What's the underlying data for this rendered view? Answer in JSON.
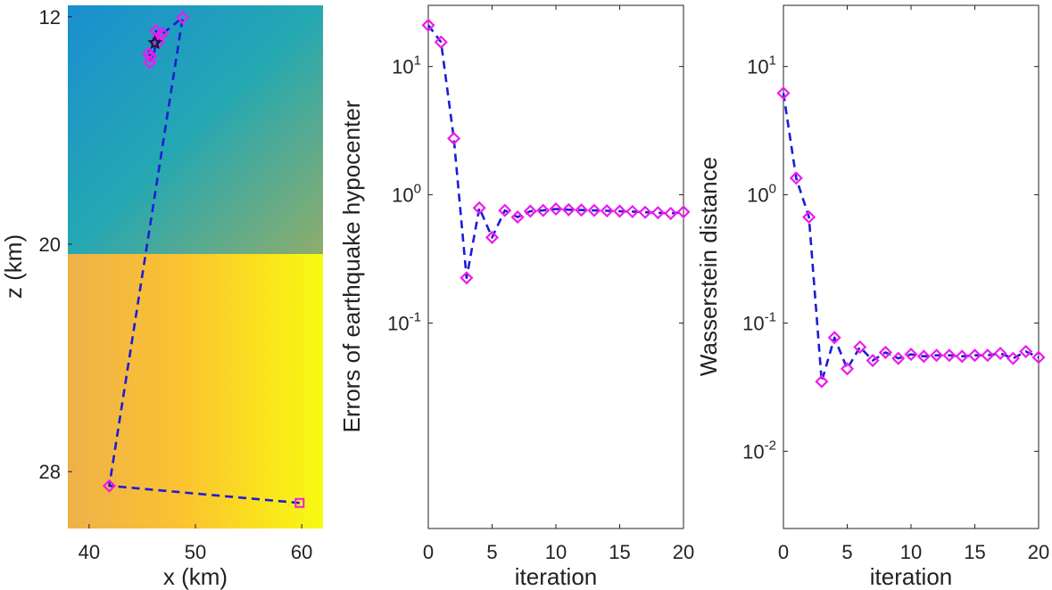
{
  "chart_data": [
    {
      "type": "line",
      "panel": "left",
      "xlabel": "x (km)",
      "ylabel": "z (km)",
      "xlim": [
        38,
        62
      ],
      "ylim": [
        30,
        11.6
      ],
      "x_ticks": [
        {
          "value": 40,
          "label": "40"
        },
        {
          "value": 50,
          "label": "50"
        },
        {
          "value": 60,
          "label": "60"
        }
      ],
      "y_ticks": [
        {
          "value": 12,
          "label": "12"
        },
        {
          "value": 20,
          "label": "20"
        },
        {
          "value": 28,
          "label": "28"
        }
      ],
      "layer_boundary_depth": 20,
      "background_colors": {
        "upper_left": "#1a8ed0",
        "upper_right": "#8fad6c",
        "lower_left": "#eeb14a",
        "lower_mid": "#fbc330",
        "lower_right": "#f8fa10"
      },
      "series": [
        {
          "name": "hypocenter path",
          "line_color": "#1c1cd8",
          "marker_color": "#ee1aee",
          "x": [
            59.8,
            41.9,
            48.8,
            46.9,
            46.5,
            45.7,
            46.6,
            46.3,
            45.6,
            45.8
          ],
          "y": [
            29.1,
            28.5,
            12.03,
            12.6,
            12.9,
            13.6,
            12.7,
            12.5,
            13.3,
            13.4
          ]
        }
      ],
      "true_location": {
        "x": 46.2,
        "y": 12.92,
        "marker": "star"
      }
    },
    {
      "type": "line",
      "panel": "middle",
      "yscale": "log",
      "xlabel": "iteration",
      "ylabel": "Errors of earthquake hypocenter",
      "xlim": [
        0,
        20
      ],
      "ylim": [
        0.0025,
        30
      ],
      "x_ticks": [
        {
          "value": 0,
          "label": "0"
        },
        {
          "value": 5,
          "label": "5"
        },
        {
          "value": 10,
          "label": "10"
        },
        {
          "value": 15,
          "label": "15"
        },
        {
          "value": 20,
          "label": "20"
        }
      ],
      "y_ticks": [
        {
          "value": 10,
          "base": "10",
          "exp": "1"
        },
        {
          "value": 1,
          "base": "10",
          "exp": "0"
        },
        {
          "value": 0.1,
          "base": "10",
          "exp": "-1"
        }
      ],
      "series": [
        {
          "name": "hypocenter error",
          "line_color": "#1c1cd8",
          "marker_color": "#ee1aee",
          "x": [
            0,
            1,
            2,
            3,
            4,
            5,
            6,
            7,
            8,
            9,
            10,
            11,
            12,
            13,
            14,
            15,
            16,
            17,
            18,
            19,
            20
          ],
          "y": [
            21,
            15.5,
            2.75,
            0.225,
            0.79,
            0.465,
            0.755,
            0.67,
            0.745,
            0.755,
            0.775,
            0.765,
            0.76,
            0.755,
            0.75,
            0.745,
            0.74,
            0.73,
            0.725,
            0.715,
            0.735
          ]
        }
      ]
    },
    {
      "type": "line",
      "panel": "right",
      "yscale": "log",
      "xlabel": "iteration",
      "ylabel": "Wasserstein distance",
      "xlim": [
        0,
        20
      ],
      "ylim": [
        0.0025,
        30
      ],
      "x_ticks": [
        {
          "value": 0,
          "label": "0"
        },
        {
          "value": 5,
          "label": "5"
        },
        {
          "value": 10,
          "label": "10"
        },
        {
          "value": 15,
          "label": "15"
        },
        {
          "value": 20,
          "label": "20"
        }
      ],
      "y_ticks": [
        {
          "value": 10,
          "base": "10",
          "exp": "1"
        },
        {
          "value": 1,
          "base": "10",
          "exp": "0"
        },
        {
          "value": 0.1,
          "base": "10",
          "exp": "-1"
        },
        {
          "value": 0.01,
          "base": "10",
          "exp": "-2"
        }
      ],
      "series": [
        {
          "name": "wasserstein distance",
          "line_color": "#1c1cd8",
          "marker_color": "#ee1aee",
          "x": [
            0,
            1,
            2,
            3,
            4,
            5,
            6,
            7,
            8,
            9,
            10,
            11,
            12,
            13,
            14,
            15,
            16,
            17,
            18,
            19,
            20
          ],
          "y": [
            6.2,
            1.35,
            0.67,
            0.035,
            0.077,
            0.044,
            0.065,
            0.051,
            0.059,
            0.053,
            0.057,
            0.055,
            0.056,
            0.056,
            0.055,
            0.056,
            0.056,
            0.058,
            0.053,
            0.06,
            0.054
          ]
        }
      ]
    }
  ]
}
